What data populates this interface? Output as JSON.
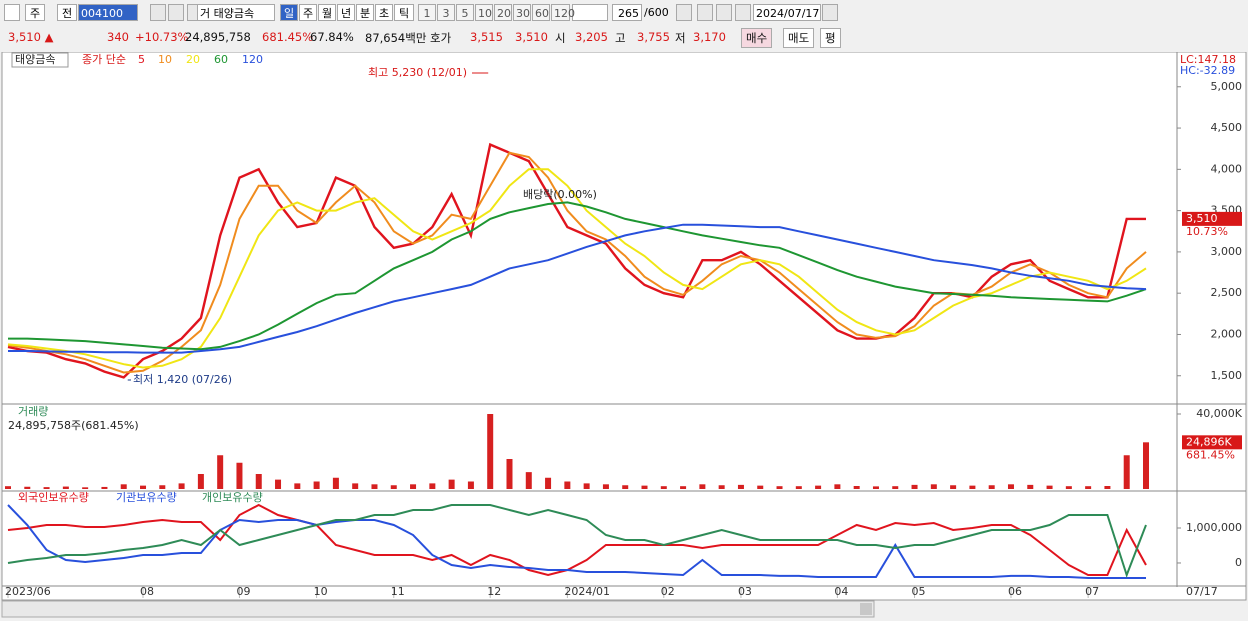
{
  "toolbar": {
    "items": [
      "주",
      "전",
      "004100",
      "거 태양금속",
      "일",
      "주",
      "월",
      "년",
      "분",
      "초",
      "틱",
      "1",
      "3",
      "5",
      "10",
      "20",
      "30",
      "60",
      "120",
      "265",
      "/600",
      "2024/07/17"
    ]
  },
  "quote": {
    "items": [
      "3,510 ▲",
      "340",
      "+10.73%",
      "24,895,758",
      "681.45%",
      "67.84%",
      "87,654백만",
      "호가",
      "3,515",
      "3,510",
      "시",
      "3,205",
      "고",
      "3,755",
      "저",
      "3,170",
      "매수",
      "매도",
      "평"
    ]
  },
  "chart_data": [
    {
      "type": "line",
      "title": "태양금속",
      "legend_label": "종가 단순",
      "high_label": "최고 5,230 (12/01)",
      "low_label": "최저 1,420 (07/26)",
      "event_label": "배당락(0.00%)",
      "lc_label": "LC:147.18",
      "hc_label": "HC:-32.89",
      "last_label": "3,510",
      "change_label": "10.73%",
      "ylim": [
        1170,
        5300
      ],
      "yticks": [
        {
          "value": 1500,
          "label": "1,500"
        },
        {
          "value": 2000,
          "label": "2,000"
        },
        {
          "value": 2500,
          "label": "2,500"
        },
        {
          "value": 3000,
          "label": "3,000"
        },
        {
          "value": 3500,
          "label": "3,500"
        },
        {
          "value": 4000,
          "label": "4,000"
        },
        {
          "value": 4500,
          "label": "4,500"
        },
        {
          "value": 5000,
          "label": "5,000"
        }
      ],
      "series": [
        {
          "name": "5",
          "color": "#e0141e",
          "values": [
            1850,
            1800,
            1780,
            1700,
            1650,
            1550,
            1480,
            1700,
            1800,
            1950,
            2200,
            3200,
            3900,
            4000,
            3600,
            3300,
            3350,
            3900,
            3800,
            3300,
            3050,
            3100,
            3300,
            3700,
            3200,
            4300,
            4200,
            4100,
            3700,
            3300,
            3200,
            3100,
            2800,
            2600,
            2500,
            2450,
            2900,
            2900,
            3000,
            2850,
            2650,
            2450,
            2250,
            2050,
            1950,
            1950,
            2000,
            2200,
            2500,
            2500,
            2450,
            2700,
            2850,
            2900,
            2650,
            2550,
            2450,
            2450,
            3400,
            3400
          ]
        },
        {
          "name": "10",
          "color": "#f08c1e",
          "values": [
            1870,
            1840,
            1800,
            1760,
            1700,
            1620,
            1540,
            1560,
            1680,
            1850,
            2050,
            2600,
            3400,
            3800,
            3800,
            3500,
            3350,
            3600,
            3800,
            3600,
            3250,
            3100,
            3200,
            3450,
            3400,
            3800,
            4200,
            4150,
            3900,
            3500,
            3250,
            3150,
            2950,
            2700,
            2550,
            2480,
            2650,
            2850,
            2950,
            2900,
            2750,
            2550,
            2350,
            2150,
            2000,
            1960,
            1980,
            2100,
            2350,
            2500,
            2480,
            2580,
            2750,
            2850,
            2750,
            2600,
            2500,
            2450,
            2800,
            3000
          ]
        },
        {
          "name": "20",
          "color": "#f0e614",
          "values": [
            1880,
            1860,
            1830,
            1800,
            1760,
            1700,
            1640,
            1600,
            1620,
            1700,
            1850,
            2200,
            2700,
            3200,
            3500,
            3600,
            3500,
            3500,
            3600,
            3650,
            3450,
            3250,
            3150,
            3250,
            3350,
            3500,
            3800,
            4000,
            4000,
            3800,
            3500,
            3300,
            3100,
            2950,
            2750,
            2600,
            2550,
            2700,
            2850,
            2900,
            2850,
            2700,
            2500,
            2300,
            2150,
            2050,
            2000,
            2050,
            2200,
            2350,
            2450,
            2500,
            2600,
            2700,
            2750,
            2700,
            2650,
            2550,
            2650,
            2800
          ]
        },
        {
          "name": "60",
          "color": "#1e9632",
          "values": [
            1950,
            1950,
            1940,
            1930,
            1920,
            1900,
            1880,
            1860,
            1840,
            1830,
            1820,
            1850,
            1920,
            2000,
            2120,
            2250,
            2380,
            2480,
            2500,
            2650,
            2800,
            2900,
            3000,
            3150,
            3250,
            3400,
            3480,
            3530,
            3580,
            3600,
            3550,
            3480,
            3400,
            3350,
            3300,
            3250,
            3200,
            3160,
            3120,
            3080,
            3050,
            2960,
            2870,
            2780,
            2700,
            2640,
            2580,
            2540,
            2500,
            2490,
            2480,
            2470,
            2450,
            2440,
            2430,
            2420,
            2410,
            2400,
            2470,
            2550
          ]
        },
        {
          "name": "120",
          "color": "#2850dc",
          "values": [
            1800,
            1800,
            1795,
            1790,
            1790,
            1785,
            1785,
            1780,
            1780,
            1780,
            1800,
            1820,
            1850,
            1910,
            1970,
            2030,
            2100,
            2180,
            2260,
            2330,
            2400,
            2450,
            2500,
            2550,
            2600,
            2700,
            2800,
            2850,
            2900,
            2980,
            3060,
            3130,
            3200,
            3250,
            3290,
            3330,
            3330,
            3320,
            3310,
            3300,
            3300,
            3250,
            3200,
            3150,
            3100,
            3050,
            3000,
            2950,
            2900,
            2870,
            2840,
            2800,
            2750,
            2710,
            2680,
            2650,
            2600,
            2580,
            2560,
            2550
          ]
        }
      ]
    },
    {
      "type": "bar",
      "title": "거래량",
      "subtitle": "24,895,758주(681.45%)",
      "last_label": "24,896K",
      "change_label": "681.45%",
      "color": "#d62020",
      "ylim": [
        0,
        44800000
      ],
      "yticks": [
        {
          "value": 40000000,
          "label": "40,000K"
        }
      ],
      "values": [
        1500000,
        1200000,
        1000000,
        1300000,
        900000,
        1100000,
        2500000,
        1800000,
        2000000,
        3000000,
        8000000,
        18000000,
        14000000,
        8000000,
        5000000,
        3000000,
        4000000,
        6000000,
        3000000,
        2500000,
        2000000,
        2500000,
        3000000,
        5000000,
        4000000,
        40000000,
        16000000,
        9000000,
        6000000,
        4000000,
        3000000,
        2500000,
        2000000,
        1800000,
        1500000,
        1500000,
        2500000,
        2000000,
        2200000,
        1800000,
        1500000,
        1500000,
        1800000,
        2500000,
        1600000,
        1400000,
        1500000,
        2200000,
        2500000,
        2000000,
        1800000,
        2000000,
        2500000,
        2200000,
        1800000,
        1500000,
        1500000,
        1600000,
        18000000,
        24895758
      ]
    },
    {
      "type": "line",
      "x_end_label": "07/17",
      "categories": [
        "2023/06",
        null,
        null,
        null,
        null,
        null,
        null,
        "08",
        null,
        null,
        null,
        null,
        "09",
        null,
        null,
        null,
        "10",
        null,
        null,
        null,
        "11",
        null,
        null,
        null,
        null,
        "12",
        null,
        null,
        null,
        "2024/01",
        null,
        null,
        null,
        null,
        "02",
        null,
        null,
        null,
        "03",
        null,
        null,
        null,
        null,
        "04",
        null,
        null,
        null,
        "05",
        null,
        null,
        null,
        null,
        "06",
        null,
        null,
        null,
        "07",
        null,
        null,
        null
      ],
      "ylim": [
        -630000,
        2030000
      ],
      "yticks": [
        0,
        {
          "value": 1000000,
          "label": "1,000,000"
        }
      ],
      "series": [
        {
          "name": "외국인보유수량",
          "color": "#e0141e",
          "values": [
            943000,
            1000000,
            1086000,
            1086000,
            1029000,
            1029000,
            1086000,
            1171000,
            1229000,
            1171000,
            1171000,
            657000,
            1371000,
            1657000,
            1371000,
            1229000,
            1086000,
            514000,
            371000,
            229000,
            229000,
            229000,
            86000,
            229000,
            -57000,
            229000,
            86000,
            -200000,
            -343000,
            -200000,
            86000,
            514000,
            514000,
            514000,
            514000,
            514000,
            429000,
            514000,
            514000,
            514000,
            514000,
            514000,
            514000,
            800000,
            1086000,
            943000,
            1143000,
            1086000,
            1143000,
            943000,
            1000000,
            1086000,
            1086000,
            800000,
            371000,
            -57000,
            -343000,
            -343000,
            943000,
            -57000
          ]
        },
        {
          "name": "기관보유수량",
          "color": "#2850dc",
          "values": [
            1657000,
            1086000,
            371000,
            86000,
            29000,
            86000,
            143000,
            229000,
            229000,
            286000,
            286000,
            943000,
            1229000,
            1171000,
            1229000,
            1229000,
            1086000,
            1171000,
            1229000,
            1229000,
            1086000,
            800000,
            229000,
            -57000,
            -143000,
            -57000,
            -114000,
            -143000,
            -200000,
            -200000,
            -257000,
            -257000,
            -257000,
            -286000,
            -314000,
            -343000,
            86000,
            -343000,
            -343000,
            -343000,
            -371000,
            -371000,
            -400000,
            -400000,
            -400000,
            -400000,
            514000,
            -400000,
            -400000,
            -400000,
            -400000,
            -400000,
            -371000,
            -371000,
            -400000,
            -400000,
            -429000,
            -429000,
            -429000,
            -429000
          ]
        },
        {
          "name": "개인보유수량",
          "color": "#2e8b57",
          "values": [
            0,
            86000,
            143000,
            229000,
            229000,
            286000,
            371000,
            429000,
            514000,
            657000,
            514000,
            943000,
            514000,
            657000,
            800000,
            943000,
            1086000,
            1229000,
            1229000,
            1371000,
            1371000,
            1514000,
            1514000,
            1657000,
            1657000,
            1657000,
            1514000,
            1371000,
            1514000,
            1371000,
            1229000,
            800000,
            657000,
            657000,
            514000,
            657000,
            800000,
            943000,
            800000,
            657000,
            657000,
            657000,
            657000,
            657000,
            514000,
            514000,
            429000,
            514000,
            514000,
            657000,
            800000,
            943000,
            943000,
            943000,
            1086000,
            1371000,
            1371000,
            1371000,
            -343000,
            1086000
          ]
        }
      ]
    }
  ]
}
